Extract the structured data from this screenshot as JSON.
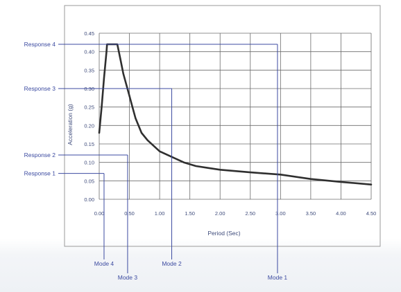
{
  "colors": {
    "curve": "#2f2f2f",
    "grid": "#6b6b6b",
    "annotation": "#3b4aa0",
    "tick_text": "#3d4a7a",
    "frame": "#9a9a9a"
  },
  "chart_data": {
    "type": "line",
    "title": "",
    "xlabel": "Period (Sec)",
    "ylabel": "Acceleration (g)",
    "xlim": [
      0,
      4.5
    ],
    "ylim": [
      0,
      0.45
    ],
    "grid": true,
    "x_ticks": [
      "0.0",
      "0.5",
      "1.0",
      "1.5",
      "2.0",
      "2.5",
      "3.0",
      "3.5",
      "4.0",
      "4.5"
    ],
    "x_tick_labels": [
      "0.00",
      "0.50",
      "1.00",
      "1.50",
      "2.00",
      "2.50",
      "3.00",
      "3.50",
      "4.00",
      "4.50"
    ],
    "y_ticks": [
      "0.00",
      "0.05",
      "0.10",
      "0.15",
      "0.20",
      "0.25",
      "0.30",
      "0.35",
      "0.40",
      "0.45"
    ],
    "y_tick_labels": [
      "0.00",
      "0.05",
      "0.10",
      "0.15",
      "0.20",
      "0.25",
      "0.30",
      "0.35",
      "0.40",
      "0.45"
    ],
    "series": [
      {
        "points": [
          [
            0.0,
            0.18
          ],
          [
            0.04,
            0.25
          ],
          [
            0.08,
            0.33
          ],
          [
            0.12,
            0.4
          ],
          [
            0.13,
            0.42
          ],
          [
            0.3,
            0.42
          ],
          [
            0.35,
            0.38
          ],
          [
            0.4,
            0.34
          ],
          [
            0.45,
            0.31
          ],
          [
            0.5,
            0.28
          ],
          [
            0.55,
            0.25
          ],
          [
            0.6,
            0.22
          ],
          [
            0.7,
            0.18
          ],
          [
            0.8,
            0.16
          ],
          [
            0.9,
            0.145
          ],
          [
            1.0,
            0.13
          ],
          [
            1.2,
            0.115
          ],
          [
            1.4,
            0.1
          ],
          [
            1.6,
            0.09
          ],
          [
            1.8,
            0.085
          ],
          [
            2.0,
            0.08
          ],
          [
            2.5,
            0.073
          ],
          [
            3.0,
            0.067
          ],
          [
            3.5,
            0.055
          ],
          [
            4.0,
            0.047
          ],
          [
            4.5,
            0.04
          ]
        ]
      }
    ],
    "annotations": {
      "responses": [
        {
          "label": "Response 4",
          "y": 0.42
        },
        {
          "label": "Response 3",
          "y": 0.3
        },
        {
          "label": "Response 2",
          "y": 0.12
        },
        {
          "label": "Response 1",
          "y": 0.07
        }
      ],
      "modes": [
        {
          "label": "Mode 4",
          "x": 0.08
        },
        {
          "label": "Mode 3",
          "x": 0.47
        },
        {
          "label": "Mode 2",
          "x": 1.2
        },
        {
          "label": "Mode 1",
          "x": 2.95
        }
      ]
    }
  }
}
